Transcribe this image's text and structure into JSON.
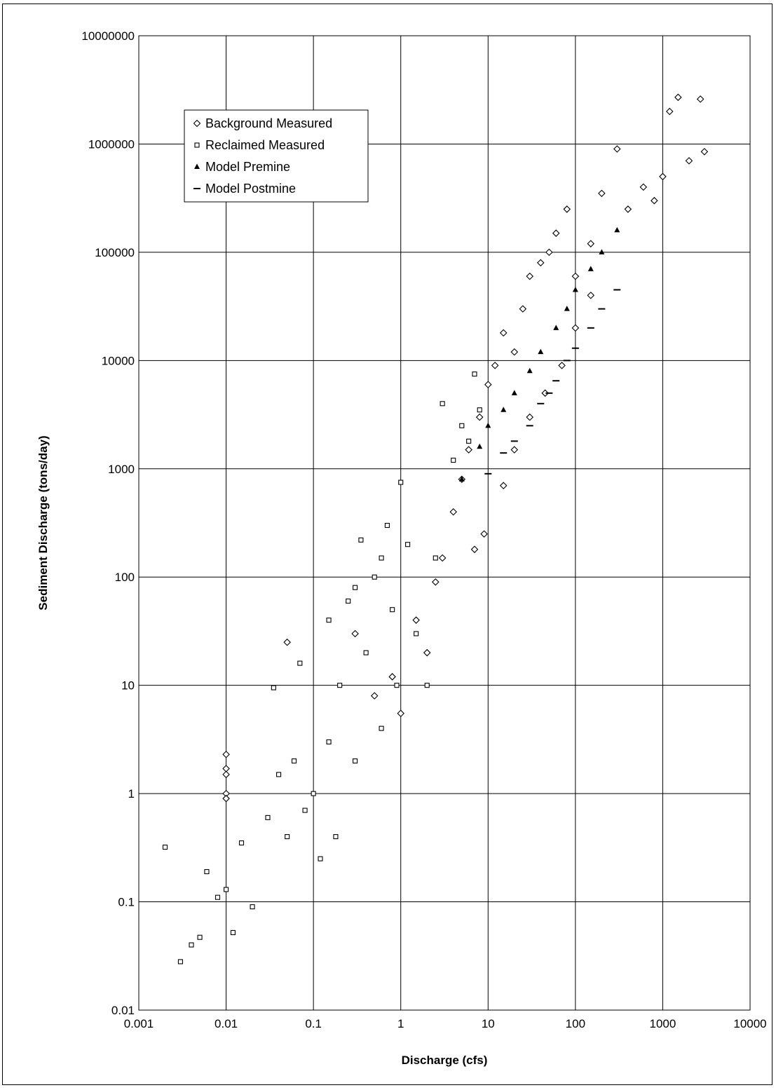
{
  "chart_data": {
    "type": "scatter",
    "title": "",
    "xlabel": "Discharge (cfs)",
    "ylabel": "Sediment Discharge (tons/day)",
    "x_scale": "log",
    "y_scale": "log",
    "xlim": [
      0.001,
      10000
    ],
    "ylim": [
      0.01,
      10000000
    ],
    "x_ticks": [
      "0.001",
      "0.01",
      "0.1",
      "1",
      "10",
      "100",
      "1000",
      "10000"
    ],
    "y_ticks": [
      "0.01",
      "0.1",
      "1",
      "10",
      "100",
      "1000",
      "10000",
      "100000",
      "1000000",
      "10000000"
    ],
    "grid": true,
    "legend_position": "top-left",
    "series": [
      {
        "name": "Background Measured",
        "marker": "diamond-open",
        "points": [
          [
            0.01,
            2.3
          ],
          [
            0.01,
            1.7
          ],
          [
            0.01,
            1.5
          ],
          [
            0.01,
            1.0
          ],
          [
            0.01,
            0.9
          ],
          [
            0.05,
            25
          ],
          [
            0.3,
            30
          ],
          [
            0.5,
            8
          ],
          [
            0.8,
            12
          ],
          [
            1.0,
            5.5
          ],
          [
            1.5,
            40
          ],
          [
            2.0,
            20
          ],
          [
            2.5,
            90
          ],
          [
            3.0,
            150
          ],
          [
            4.0,
            400
          ],
          [
            5.0,
            800
          ],
          [
            6.0,
            1500
          ],
          [
            8.0,
            3000
          ],
          [
            10,
            6000
          ],
          [
            12,
            9000
          ],
          [
            15,
            18000
          ],
          [
            20,
            12000
          ],
          [
            25,
            30000
          ],
          [
            30,
            60000
          ],
          [
            40,
            80000
          ],
          [
            50,
            100000
          ],
          [
            60,
            150000
          ],
          [
            80,
            250000
          ],
          [
            100,
            60000
          ],
          [
            150,
            120000
          ],
          [
            200,
            350000
          ],
          [
            300,
            900000
          ],
          [
            400,
            250000
          ],
          [
            600,
            400000
          ],
          [
            800,
            300000
          ],
          [
            1000,
            500000
          ],
          [
            1200,
            2000000
          ],
          [
            1500,
            2700000
          ],
          [
            2000,
            700000
          ],
          [
            2700,
            2600000
          ],
          [
            3000,
            850000
          ],
          [
            9,
            250
          ],
          [
            15,
            700
          ],
          [
            20,
            1500
          ],
          [
            30,
            3000
          ],
          [
            45,
            5000
          ],
          [
            70,
            9000
          ],
          [
            100,
            20000
          ],
          [
            150,
            40000
          ],
          [
            7,
            180
          ]
        ]
      },
      {
        "name": "Reclaimed Measured",
        "marker": "square-open",
        "points": [
          [
            0.002,
            0.32
          ],
          [
            0.003,
            0.028
          ],
          [
            0.004,
            0.04
          ],
          [
            0.005,
            0.047
          ],
          [
            0.006,
            0.19
          ],
          [
            0.008,
            0.11
          ],
          [
            0.01,
            0.13
          ],
          [
            0.012,
            0.052
          ],
          [
            0.015,
            0.35
          ],
          [
            0.02,
            0.09
          ],
          [
            0.03,
            0.6
          ],
          [
            0.035,
            9.5
          ],
          [
            0.04,
            1.5
          ],
          [
            0.05,
            0.4
          ],
          [
            0.06,
            2.0
          ],
          [
            0.07,
            16
          ],
          [
            0.08,
            0.7
          ],
          [
            0.1,
            1.0
          ],
          [
            0.12,
            0.25
          ],
          [
            0.15,
            3.0
          ],
          [
            0.18,
            0.4
          ],
          [
            0.2,
            10
          ],
          [
            0.25,
            60
          ],
          [
            0.3,
            2.0
          ],
          [
            0.35,
            220
          ],
          [
            0.4,
            20
          ],
          [
            0.5,
            100
          ],
          [
            0.6,
            4.0
          ],
          [
            0.7,
            300
          ],
          [
            0.8,
            50
          ],
          [
            1.0,
            750
          ],
          [
            1.2,
            200
          ],
          [
            1.5,
            30
          ],
          [
            2.0,
            10
          ],
          [
            2.5,
            150
          ],
          [
            3.0,
            4000
          ],
          [
            4.0,
            1200
          ],
          [
            5.0,
            2500
          ],
          [
            6.0,
            1800
          ],
          [
            7.0,
            7500
          ],
          [
            8.0,
            3500
          ],
          [
            0.15,
            40
          ],
          [
            0.3,
            80
          ],
          [
            0.6,
            150
          ],
          [
            0.9,
            10
          ]
        ]
      },
      {
        "name": "Model Premine",
        "marker": "triangle-filled",
        "points": [
          [
            5,
            800
          ],
          [
            8,
            1600
          ],
          [
            10,
            2500
          ],
          [
            15,
            3500
          ],
          [
            20,
            5000
          ],
          [
            30,
            8000
          ],
          [
            40,
            12000
          ],
          [
            60,
            20000
          ],
          [
            80,
            30000
          ],
          [
            100,
            45000
          ],
          [
            150,
            70000
          ],
          [
            200,
            100000
          ],
          [
            300,
            160000
          ]
        ]
      },
      {
        "name": "Model Postmine",
        "marker": "dash",
        "points": [
          [
            10,
            900
          ],
          [
            15,
            1400
          ],
          [
            20,
            1800
          ],
          [
            30,
            2500
          ],
          [
            40,
            4000
          ],
          [
            50,
            5000
          ],
          [
            60,
            6500
          ],
          [
            80,
            10000
          ],
          [
            100,
            13000
          ],
          [
            150,
            20000
          ],
          [
            200,
            30000
          ],
          [
            300,
            45000
          ]
        ]
      }
    ]
  }
}
